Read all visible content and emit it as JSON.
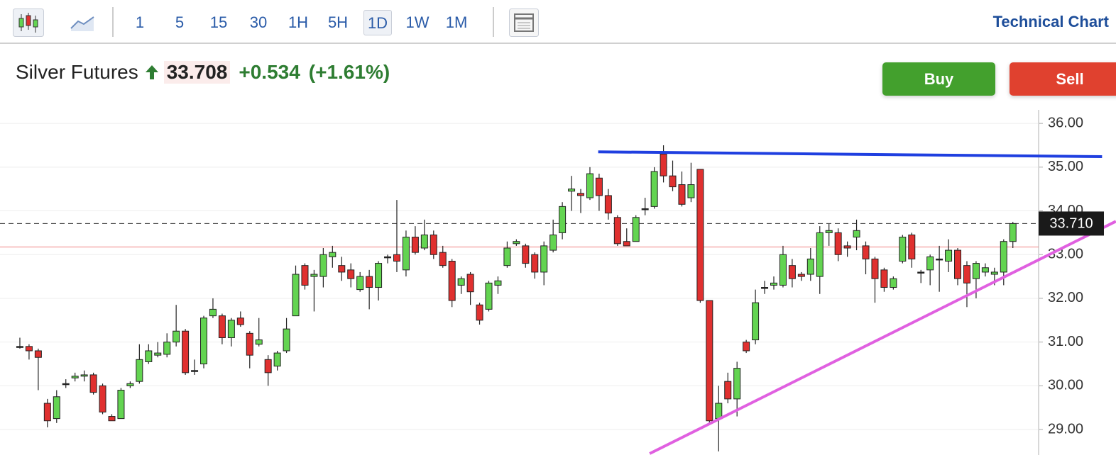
{
  "toolbar": {
    "intervals": [
      "1",
      "5",
      "15",
      "30",
      "1H",
      "5H",
      "1D",
      "1W",
      "1M"
    ],
    "active_index": 6,
    "title": "Technical Chart"
  },
  "header": {
    "name": "Silver Futures",
    "price": "33.708",
    "change": "+0.534",
    "change_pct": "(+1.61%)"
  },
  "buttons": {
    "buy": "Buy",
    "sell": "Sell"
  },
  "chart_data": {
    "type": "candlestick",
    "up_color": "#63d451",
    "down_color": "#e0302f",
    "xlim": [
      -2.16,
      110.8
    ],
    "ylim": [
      28.45,
      36.31
    ],
    "yticks": [
      {
        "value": 29,
        "label": "29.00"
      },
      {
        "value": 30,
        "label": "30.00"
      },
      {
        "value": 31,
        "label": "31.00"
      },
      {
        "value": 32,
        "label": "32.00"
      },
      {
        "value": 33,
        "label": "33.00"
      },
      {
        "value": 34,
        "label": "34.00"
      },
      {
        "value": 35,
        "label": "35.00"
      },
      {
        "value": 36,
        "label": "36.00"
      }
    ],
    "grid": true,
    "last_price": {
      "value": 33.71,
      "label": "33.710"
    },
    "prev_close": 33.174,
    "drawings": [
      {
        "color": "#1f3fe0",
        "x": [
          62.9,
          117.7
        ],
        "values": [
          35.35,
          35.24
        ]
      },
      {
        "color": "#e060e0",
        "x": [
          68.5,
          119.2
        ],
        "values": [
          28.45,
          33.76
        ]
      }
    ],
    "open": [
      30.9,
      30.9,
      30.8,
      29.6,
      29.25,
      30.05,
      30.18,
      30.22,
      30.25,
      30.0,
      29.3,
      29.25,
      30.0,
      30.1,
      30.55,
      30.7,
      30.72,
      31.0,
      31.25,
      30.35,
      30.5,
      31.6,
      31.6,
      31.1,
      31.55,
      31.2,
      30.95,
      30.6,
      30.45,
      30.8,
      31.6,
      32.75,
      32.5,
      32.5,
      32.95,
      32.75,
      32.65,
      32.2,
      32.5,
      32.25,
      32.95,
      33.0,
      32.65,
      33.4,
      33.15,
      33.45,
      33.05,
      32.85,
      32.3,
      32.55,
      31.85,
      31.75,
      32.3,
      32.75,
      33.25,
      33.2,
      33.0,
      32.6,
      33.1,
      33.5,
      34.45,
      34.4,
      34.3,
      34.75,
      34.35,
      33.85,
      33.3,
      33.3,
      34.05,
      34.1,
      35.3,
      34.8,
      34.6,
      34.3,
      34.95,
      31.95,
      29.25,
      30.1,
      29.7,
      31.0,
      31.05,
      32.25,
      32.3,
      32.3,
      32.75,
      32.55,
      32.55,
      32.5,
      33.5,
      33.5,
      33.2,
      33.4,
      33.2,
      32.9,
      32.65,
      32.25,
      32.85,
      33.45,
      32.6,
      32.65,
      32.9,
      32.85,
      33.1,
      32.75,
      32.45,
      32.6,
      32.55,
      32.6,
      33.3
    ],
    "high": [
      31.1,
      30.95,
      30.85,
      29.7,
      29.9,
      30.15,
      30.3,
      30.35,
      30.3,
      30.05,
      29.35,
      29.95,
      30.1,
      30.95,
      30.95,
      31.0,
      31.2,
      31.85,
      31.3,
      30.6,
      31.6,
      32.0,
      31.65,
      31.55,
      31.7,
      31.25,
      31.55,
      30.7,
      30.8,
      31.55,
      32.75,
      32.8,
      32.65,
      33.15,
      33.2,
      32.95,
      32.8,
      32.6,
      32.65,
      32.85,
      33.0,
      34.25,
      33.55,
      33.65,
      33.8,
      33.55,
      33.2,
      32.9,
      32.5,
      32.6,
      31.9,
      32.4,
      32.5,
      33.3,
      33.35,
      33.25,
      33.05,
      33.3,
      33.8,
      34.2,
      34.8,
      34.5,
      35.0,
      34.85,
      34.5,
      33.9,
      33.6,
      33.9,
      34.3,
      35.0,
      35.5,
      35.15,
      34.9,
      35.1,
      34.95,
      31.95,
      30.0,
      30.3,
      30.55,
      31.05,
      32.2,
      32.4,
      32.5,
      33.2,
      32.9,
      32.6,
      33.15,
      33.65,
      33.7,
      33.6,
      33.3,
      33.8,
      33.3,
      32.95,
      32.7,
      32.5,
      33.45,
      33.5,
      32.65,
      33.0,
      33.2,
      33.35,
      33.15,
      32.85,
      32.85,
      32.8,
      32.7,
      33.35,
      33.75
    ],
    "low": [
      30.85,
      30.6,
      29.9,
      29.05,
      29.15,
      29.95,
      30.1,
      30.1,
      29.8,
      29.35,
      29.2,
      29.25,
      29.95,
      30.05,
      30.5,
      30.65,
      30.65,
      30.9,
      30.25,
      30.25,
      30.4,
      31.55,
      30.95,
      30.9,
      31.35,
      30.4,
      30.9,
      30.0,
      30.35,
      30.75,
      31.6,
      32.2,
      31.7,
      32.25,
      32.7,
      32.4,
      32.25,
      32.15,
      31.75,
      31.95,
      32.8,
      32.6,
      32.5,
      33.0,
      33.1,
      32.9,
      32.7,
      31.8,
      32.1,
      31.85,
      31.4,
      31.7,
      32.1,
      32.7,
      33.2,
      32.7,
      32.45,
      32.3,
      33.05,
      33.35,
      34.0,
      33.95,
      34.25,
      34.0,
      33.8,
      33.2,
      33.2,
      33.3,
      33.9,
      34.05,
      34.65,
      34.45,
      34.1,
      34.2,
      31.9,
      29.15,
      28.5,
      29.6,
      29.3,
      30.75,
      30.95,
      32.1,
      32.2,
      32.25,
      32.25,
      32.4,
      32.4,
      32.1,
      33.2,
      32.85,
      32.95,
      33.1,
      32.55,
      31.9,
      32.15,
      32.2,
      32.8,
      32.7,
      32.35,
      32.3,
      32.15,
      32.6,
      32.3,
      31.8,
      32.0,
      32.5,
      32.3,
      32.3,
      33.15
    ],
    "close": [
      30.9,
      30.8,
      30.65,
      29.2,
      29.75,
      30.05,
      30.22,
      30.25,
      29.85,
      29.4,
      29.2,
      29.9,
      30.05,
      30.6,
      30.8,
      30.75,
      31.0,
      31.25,
      30.3,
      30.35,
      31.55,
      31.75,
      31.1,
      31.5,
      31.4,
      30.7,
      31.05,
      30.3,
      30.75,
      31.3,
      32.55,
      32.3,
      32.55,
      33.0,
      33.05,
      32.6,
      32.45,
      32.5,
      32.25,
      32.8,
      32.95,
      32.85,
      33.4,
      33.05,
      33.45,
      33.0,
      32.75,
      31.95,
      32.45,
      32.15,
      31.5,
      32.35,
      32.4,
      33.15,
      33.3,
      32.8,
      32.6,
      33.2,
      33.45,
      34.1,
      34.5,
      34.35,
      34.85,
      34.35,
      33.95,
      33.25,
      33.2,
      33.85,
      34.05,
      34.9,
      34.8,
      34.55,
      34.15,
      34.6,
      31.95,
      29.2,
      29.6,
      29.7,
      30.4,
      30.8,
      31.9,
      32.25,
      32.35,
      33.0,
      32.45,
      32.5,
      32.9,
      33.5,
      33.55,
      33.0,
      33.15,
      33.55,
      32.9,
      32.45,
      32.25,
      32.45,
      33.4,
      32.9,
      32.6,
      32.95,
      32.9,
      33.1,
      32.45,
      32.35,
      32.8,
      32.7,
      32.6,
      33.3,
      33.71
    ]
  }
}
